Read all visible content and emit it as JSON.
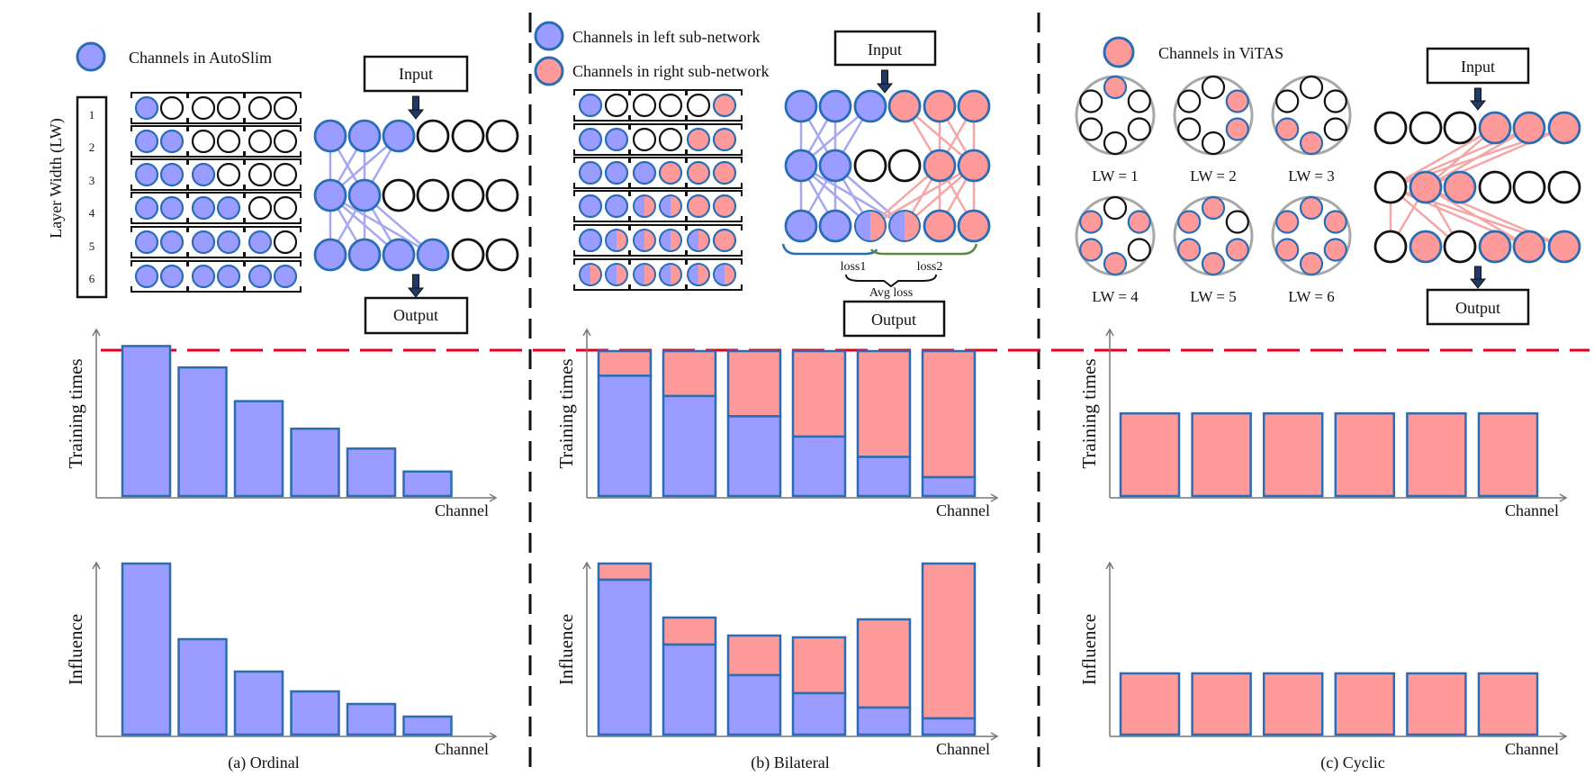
{
  "colors": {
    "blue_fill": "#9a9cff",
    "pink_fill": "#ff9a9a",
    "ring": "#2a6db5",
    "bar_edge": "#2a6db5",
    "threshold_line": "#e0001b",
    "blue_edge": "#a8a8f0",
    "pink_edge": "#f4a7a7",
    "grey_ring": "#a8a8a8"
  },
  "ordinal": {
    "legend_label": "Channels in AutoSlim",
    "lw_axis_label": "Layer Width (LW)",
    "lw_numbers": [
      "1",
      "2",
      "3",
      "4",
      "5",
      "6"
    ],
    "input_label": "Input",
    "output_label": "Output",
    "caption": "(a) Ordinal"
  },
  "bilateral": {
    "legend_left_label": "Channels in left sub-network",
    "legend_right_label": "Channels in right sub-network",
    "input_label": "Input",
    "output_label": "Output",
    "loss1_label": "loss1",
    "loss2_label": "loss2",
    "avg_loss_label": "Avg loss",
    "caption": "(b) Bilateral"
  },
  "cyclic": {
    "legend_label": "Channels in ViTAS",
    "ring_labels": [
      "LW = 1",
      "LW = 2",
      "LW = 3",
      "LW = 4",
      "LW = 5",
      "LW = 6"
    ],
    "input_label": "Input",
    "output_label": "Output",
    "caption": "(c) Cyclic"
  },
  "chart_data": [
    {
      "id": "ordinal-training",
      "type": "bar",
      "ylabel": "Training times",
      "xlabel": "Channel",
      "ylim": [
        0,
        1.1
      ],
      "values": [
        0.98,
        0.84,
        0.62,
        0.44,
        0.31,
        0.16
      ]
    },
    {
      "id": "ordinal-influence",
      "type": "bar",
      "ylabel": "Influence",
      "xlabel": "Channel",
      "ylim": [
        0,
        1.1
      ],
      "values": [
        0.95,
        0.53,
        0.35,
        0.24,
        0.17,
        0.1
      ]
    },
    {
      "id": "bilateral-training",
      "type": "bar",
      "stacked": true,
      "ylabel": "Training times",
      "xlabel": "Channel",
      "ylim": [
        0,
        1.1
      ],
      "series": [
        {
          "values": [
            0.83,
            0.69,
            0.55,
            0.41,
            0.27,
            0.13
          ]
        },
        {
          "values": [
            0.17,
            0.31,
            0.45,
            0.59,
            0.73,
            0.87
          ]
        }
      ]
    },
    {
      "id": "bilateral-influence",
      "type": "bar",
      "stacked": true,
      "ylabel": "Influence",
      "xlabel": "Channel",
      "ylim": [
        0,
        1.1
      ],
      "series": [
        {
          "values": [
            0.86,
            0.5,
            0.33,
            0.23,
            0.15,
            0.09
          ]
        },
        {
          "values": [
            0.09,
            0.15,
            0.22,
            0.31,
            0.49,
            0.86
          ]
        }
      ]
    },
    {
      "id": "cyclic-training",
      "type": "bar",
      "ylabel": "Training times",
      "xlabel": "Channel",
      "ylim": [
        0,
        1.1
      ],
      "values": [
        0.57,
        0.57,
        0.57,
        0.57,
        0.57,
        0.57
      ]
    },
    {
      "id": "cyclic-influence",
      "type": "bar",
      "ylabel": "Influence",
      "xlabel": "Channel",
      "ylim": [
        0,
        1.1
      ],
      "values": [
        0.34,
        0.34,
        0.34,
        0.34,
        0.34,
        0.34
      ]
    }
  ]
}
